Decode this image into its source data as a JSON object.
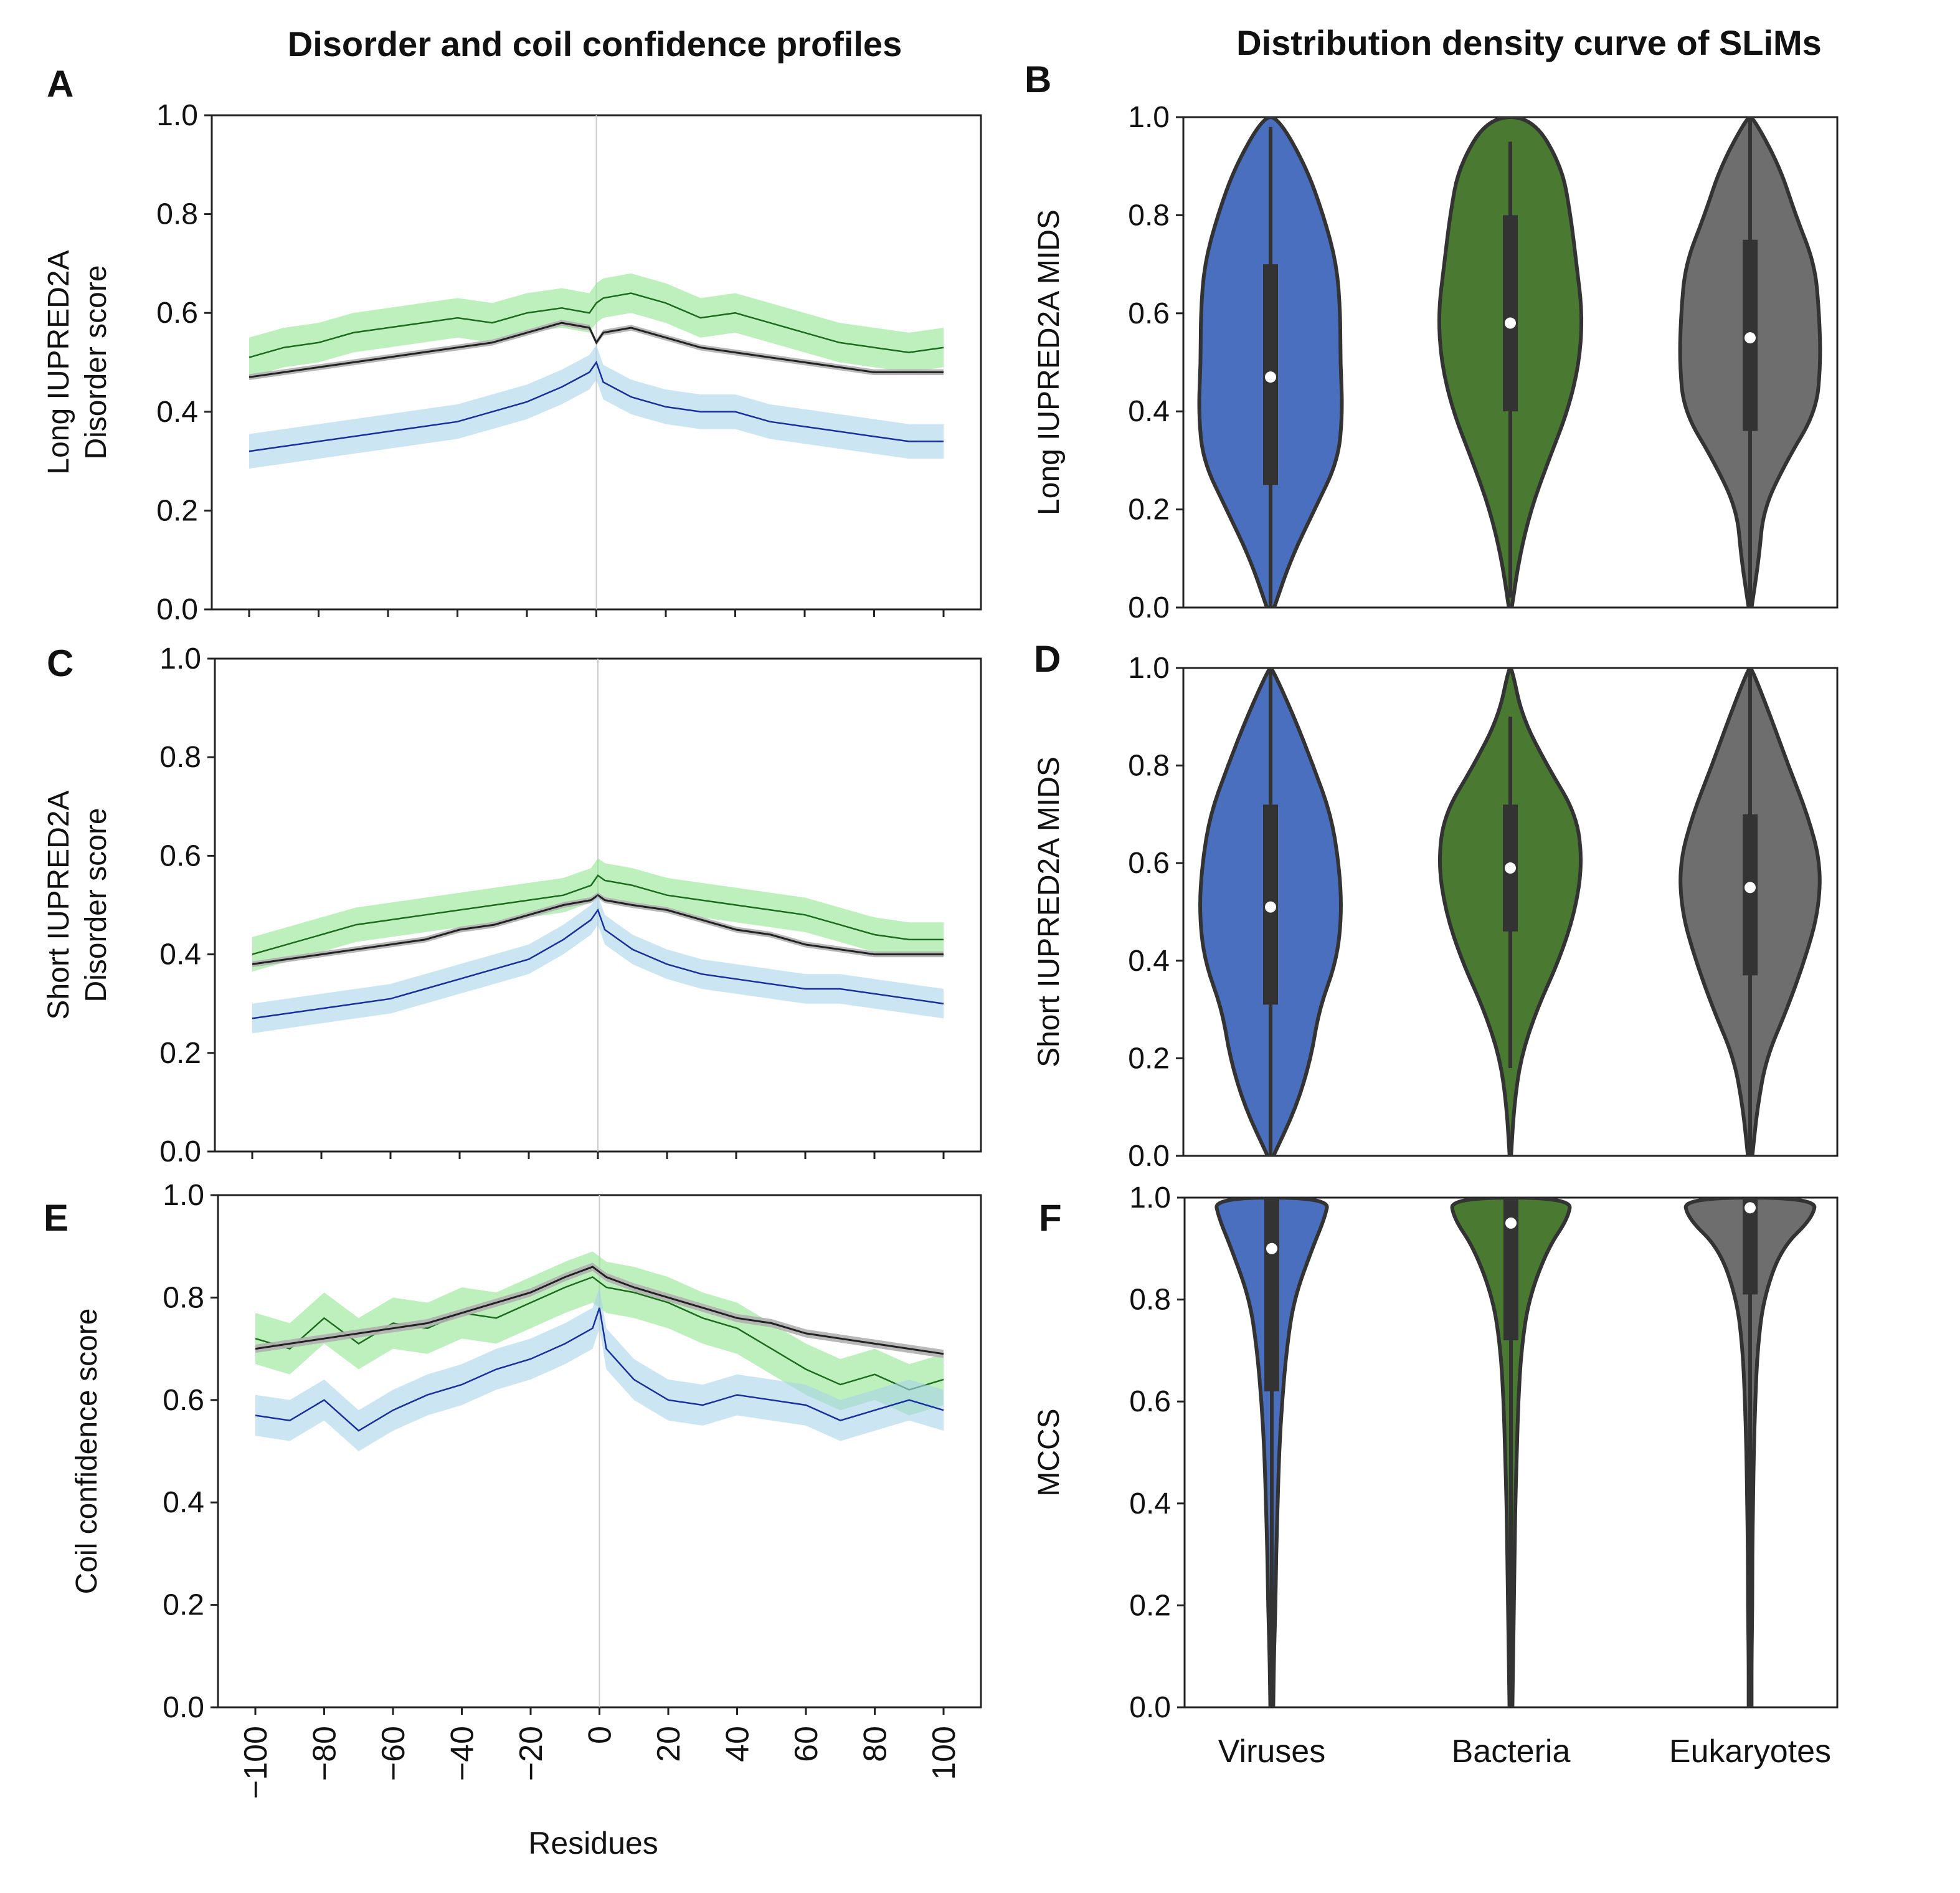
{
  "titles": {
    "left": "Disorder and coil confidence profiles",
    "right": "Distribution density curve of SLiMs"
  },
  "letters": [
    "A",
    "B",
    "C",
    "D",
    "E",
    "F"
  ],
  "colors": {
    "viruses": "#4a6fbf",
    "bacteria": "#4a7a32",
    "eukaryotes": "#6e6e6e",
    "blue_line": "#1a2f9e",
    "blue_band": "#a8d4ea",
    "green_line": "#1d6b1d",
    "green_band": "#93e693",
    "black_line": "#222222",
    "gray_band": "#b0b0b0"
  },
  "chart_data": [
    {
      "id": "A",
      "type": "line",
      "title": "Disorder and coil confidence profiles",
      "xlabel": "",
      "ylabel": [
        "Long IUPRED2A",
        "Disorder score"
      ],
      "xlim": [
        -100,
        100
      ],
      "ylim": [
        0,
        1
      ],
      "yticks": [
        "0.0",
        "0.2",
        "0.4",
        "0.6",
        "0.8",
        "1.0"
      ],
      "x": [
        -100,
        -90,
        -80,
        -70,
        -60,
        -50,
        -40,
        -30,
        -20,
        -10,
        -2,
        0,
        2,
        10,
        20,
        30,
        40,
        50,
        60,
        70,
        80,
        90,
        100
      ],
      "series": [
        {
          "name": "bacteria",
          "color": "green",
          "band": 0.04,
          "values": [
            0.51,
            0.53,
            0.54,
            0.56,
            0.57,
            0.58,
            0.59,
            0.58,
            0.6,
            0.61,
            0.6,
            0.62,
            0.63,
            0.64,
            0.62,
            0.59,
            0.6,
            0.58,
            0.56,
            0.54,
            0.53,
            0.52,
            0.53
          ]
        },
        {
          "name": "all",
          "color": "black",
          "band": 0.006,
          "values": [
            0.47,
            0.48,
            0.49,
            0.5,
            0.51,
            0.52,
            0.53,
            0.54,
            0.56,
            0.58,
            0.57,
            0.54,
            0.56,
            0.57,
            0.55,
            0.53,
            0.52,
            0.51,
            0.5,
            0.49,
            0.48,
            0.48,
            0.48
          ]
        },
        {
          "name": "viruses",
          "color": "blue",
          "band": 0.035,
          "values": [
            0.32,
            0.33,
            0.34,
            0.35,
            0.36,
            0.37,
            0.38,
            0.4,
            0.42,
            0.45,
            0.48,
            0.5,
            0.46,
            0.43,
            0.41,
            0.4,
            0.4,
            0.38,
            0.37,
            0.36,
            0.35,
            0.34,
            0.34
          ]
        }
      ]
    },
    {
      "id": "C",
      "type": "line",
      "xlabel": "",
      "ylabel": [
        "Short IUPRED2A",
        "Disorder score"
      ],
      "xlim": [
        -100,
        100
      ],
      "ylim": [
        0,
        1
      ],
      "yticks": [
        "0.0",
        "0.2",
        "0.4",
        "0.6",
        "0.8",
        "1.0"
      ],
      "x": [
        -100,
        -90,
        -80,
        -70,
        -60,
        -50,
        -40,
        -30,
        -20,
        -10,
        -2,
        0,
        2,
        10,
        20,
        30,
        40,
        50,
        60,
        70,
        80,
        90,
        100
      ],
      "series": [
        {
          "name": "bacteria",
          "color": "green",
          "band": 0.035,
          "values": [
            0.4,
            0.42,
            0.44,
            0.46,
            0.47,
            0.48,
            0.49,
            0.5,
            0.51,
            0.52,
            0.54,
            0.56,
            0.55,
            0.54,
            0.52,
            0.51,
            0.5,
            0.49,
            0.48,
            0.46,
            0.44,
            0.43,
            0.43
          ]
        },
        {
          "name": "all",
          "color": "black",
          "band": 0.006,
          "values": [
            0.38,
            0.39,
            0.4,
            0.41,
            0.42,
            0.43,
            0.45,
            0.46,
            0.48,
            0.5,
            0.51,
            0.52,
            0.51,
            0.5,
            0.49,
            0.47,
            0.45,
            0.44,
            0.42,
            0.41,
            0.4,
            0.4,
            0.4
          ]
        },
        {
          "name": "viruses",
          "color": "blue",
          "band": 0.03,
          "values": [
            0.27,
            0.28,
            0.29,
            0.3,
            0.31,
            0.33,
            0.35,
            0.37,
            0.39,
            0.43,
            0.47,
            0.49,
            0.45,
            0.41,
            0.38,
            0.36,
            0.35,
            0.34,
            0.33,
            0.33,
            0.32,
            0.31,
            0.3
          ]
        }
      ]
    },
    {
      "id": "E",
      "type": "line",
      "xlabel": "Residues",
      "ylabel": [
        "Coil confidence score"
      ],
      "xlim": [
        -100,
        100
      ],
      "ylim": [
        0,
        1
      ],
      "yticks": [
        "0.0",
        "0.2",
        "0.4",
        "0.6",
        "0.8",
        "1.0"
      ],
      "xticks": [
        "−100",
        "−80",
        "−60",
        "−40",
        "−20",
        "0",
        "20",
        "40",
        "60",
        "80",
        "100"
      ],
      "x": [
        -100,
        -90,
        -80,
        -70,
        -60,
        -50,
        -40,
        -30,
        -20,
        -10,
        -2,
        0,
        2,
        10,
        20,
        30,
        40,
        50,
        60,
        70,
        80,
        90,
        100
      ],
      "series": [
        {
          "name": "bacteria",
          "color": "green",
          "band": 0.05,
          "values": [
            0.72,
            0.7,
            0.76,
            0.71,
            0.75,
            0.74,
            0.77,
            0.76,
            0.79,
            0.82,
            0.84,
            0.83,
            0.82,
            0.81,
            0.79,
            0.76,
            0.74,
            0.7,
            0.66,
            0.63,
            0.65,
            0.62,
            0.64
          ]
        },
        {
          "name": "all",
          "color": "black",
          "band": 0.008,
          "values": [
            0.7,
            0.71,
            0.72,
            0.73,
            0.74,
            0.75,
            0.77,
            0.79,
            0.81,
            0.84,
            0.86,
            0.85,
            0.84,
            0.82,
            0.8,
            0.78,
            0.76,
            0.75,
            0.73,
            0.72,
            0.71,
            0.7,
            0.69
          ]
        },
        {
          "name": "viruses",
          "color": "blue",
          "band": 0.04,
          "values": [
            0.57,
            0.56,
            0.6,
            0.54,
            0.58,
            0.61,
            0.63,
            0.66,
            0.68,
            0.71,
            0.74,
            0.78,
            0.7,
            0.64,
            0.6,
            0.59,
            0.61,
            0.6,
            0.59,
            0.56,
            0.58,
            0.6,
            0.58
          ]
        }
      ]
    },
    {
      "id": "B",
      "type": "violin",
      "ylabel": "Long IUPRED2A MIDS",
      "ylim": [
        0,
        1
      ],
      "yticks": [
        "0.0",
        "0.2",
        "0.4",
        "0.6",
        "0.8",
        "1.0"
      ],
      "categories": [
        "Viruses",
        "Bacteria",
        "Eukaryotes"
      ],
      "violins": [
        {
          "median": 0.47,
          "q1": 0.25,
          "q3": 0.7,
          "wlo": 0.0,
          "whi": 0.98,
          "profile": [
            [
              0,
              0.05
            ],
            [
              0.1,
              0.28
            ],
            [
              0.2,
              0.6
            ],
            [
              0.3,
              0.92
            ],
            [
              0.4,
              0.98
            ],
            [
              0.5,
              0.95
            ],
            [
              0.6,
              0.95
            ],
            [
              0.7,
              0.9
            ],
            [
              0.8,
              0.72
            ],
            [
              0.9,
              0.48
            ],
            [
              1.0,
              0.1
            ]
          ]
        },
        {
          "median": 0.58,
          "q1": 0.4,
          "q3": 0.8,
          "wlo": 0.02,
          "whi": 0.95,
          "profile": [
            [
              0,
              0.02
            ],
            [
              0.1,
              0.12
            ],
            [
              0.2,
              0.28
            ],
            [
              0.3,
              0.52
            ],
            [
              0.4,
              0.78
            ],
            [
              0.5,
              0.94
            ],
            [
              0.6,
              0.98
            ],
            [
              0.7,
              0.9
            ],
            [
              0.8,
              0.82
            ],
            [
              0.9,
              0.7
            ],
            [
              1.0,
              0.3
            ]
          ]
        },
        {
          "median": 0.55,
          "q1": 0.36,
          "q3": 0.75,
          "wlo": 0.0,
          "whi": 1.0,
          "profile": [
            [
              0,
              0.02
            ],
            [
              0.1,
              0.12
            ],
            [
              0.2,
              0.18
            ],
            [
              0.3,
              0.5
            ],
            [
              0.4,
              0.9
            ],
            [
              0.5,
              0.96
            ],
            [
              0.6,
              0.94
            ],
            [
              0.7,
              0.88
            ],
            [
              0.8,
              0.62
            ],
            [
              0.9,
              0.4
            ],
            [
              1.0,
              0.04
            ]
          ]
        }
      ]
    },
    {
      "id": "D",
      "type": "violin",
      "ylabel": "Short IUPRED2A MIDS",
      "ylim": [
        0,
        1
      ],
      "yticks": [
        "0.0",
        "0.2",
        "0.4",
        "0.6",
        "0.8",
        "1.0"
      ],
      "categories": [
        "Viruses",
        "Bacteria",
        "Eukaryotes"
      ],
      "violins": [
        {
          "median": 0.51,
          "q1": 0.31,
          "q3": 0.72,
          "wlo": 0.0,
          "whi": 1.0,
          "profile": [
            [
              0,
              0.04
            ],
            [
              0.1,
              0.35
            ],
            [
              0.2,
              0.55
            ],
            [
              0.3,
              0.66
            ],
            [
              0.4,
              0.9
            ],
            [
              0.5,
              0.97
            ],
            [
              0.6,
              0.93
            ],
            [
              0.7,
              0.82
            ],
            [
              0.8,
              0.58
            ],
            [
              0.9,
              0.32
            ],
            [
              1.0,
              0.02
            ]
          ]
        },
        {
          "median": 0.59,
          "q1": 0.46,
          "q3": 0.72,
          "wlo": 0.18,
          "whi": 0.9,
          "profile": [
            [
              0,
              0.01
            ],
            [
              0.1,
              0.05
            ],
            [
              0.2,
              0.14
            ],
            [
              0.3,
              0.36
            ],
            [
              0.4,
              0.66
            ],
            [
              0.5,
              0.88
            ],
            [
              0.6,
              0.98
            ],
            [
              0.7,
              0.9
            ],
            [
              0.8,
              0.5
            ],
            [
              0.9,
              0.16
            ],
            [
              1.0,
              0.02
            ]
          ]
        },
        {
          "median": 0.55,
          "q1": 0.37,
          "q3": 0.7,
          "wlo": 0.0,
          "whi": 1.0,
          "profile": [
            [
              0,
              0.03
            ],
            [
              0.1,
              0.1
            ],
            [
              0.2,
              0.22
            ],
            [
              0.3,
              0.5
            ],
            [
              0.4,
              0.74
            ],
            [
              0.5,
              0.93
            ],
            [
              0.6,
              0.96
            ],
            [
              0.7,
              0.78
            ],
            [
              0.8,
              0.52
            ],
            [
              0.9,
              0.28
            ],
            [
              1.0,
              0.02
            ]
          ]
        }
      ]
    },
    {
      "id": "F",
      "type": "violin",
      "ylabel": "MCCS",
      "ylim": [
        0,
        1
      ],
      "yticks": [
        "0.0",
        "0.2",
        "0.4",
        "0.6",
        "0.8",
        "1.0"
      ],
      "categories": [
        "Viruses",
        "Bacteria",
        "Eukaryotes"
      ],
      "violins": [
        {
          "median": 0.9,
          "q1": 0.62,
          "q3": 1.0,
          "wlo": 0.0,
          "whi": 1.0,
          "profile": [
            [
              0,
              0.02
            ],
            [
              0.1,
              0.03
            ],
            [
              0.2,
              0.05
            ],
            [
              0.3,
              0.06
            ],
            [
              0.4,
              0.08
            ],
            [
              0.5,
              0.1
            ],
            [
              0.6,
              0.14
            ],
            [
              0.7,
              0.2
            ],
            [
              0.8,
              0.3
            ],
            [
              0.9,
              0.55
            ],
            [
              0.96,
              0.72
            ],
            [
              1.0,
              0.78
            ]
          ]
        },
        {
          "median": 0.95,
          "q1": 0.72,
          "q3": 1.0,
          "wlo": 0.0,
          "whi": 1.0,
          "profile": [
            [
              0,
              0.02
            ],
            [
              0.1,
              0.03
            ],
            [
              0.2,
              0.04
            ],
            [
              0.3,
              0.05
            ],
            [
              0.4,
              0.06
            ],
            [
              0.5,
              0.08
            ],
            [
              0.6,
              0.1
            ],
            [
              0.7,
              0.14
            ],
            [
              0.8,
              0.24
            ],
            [
              0.9,
              0.5
            ],
            [
              0.96,
              0.78
            ],
            [
              1.0,
              0.82
            ]
          ]
        },
        {
          "median": 0.98,
          "q1": 0.81,
          "q3": 1.0,
          "wlo": 0.0,
          "whi": 1.0,
          "profile": [
            [
              0,
              0.02
            ],
            [
              0.1,
              0.02
            ],
            [
              0.2,
              0.03
            ],
            [
              0.3,
              0.03
            ],
            [
              0.4,
              0.04
            ],
            [
              0.5,
              0.05
            ],
            [
              0.6,
              0.07
            ],
            [
              0.7,
              0.1
            ],
            [
              0.8,
              0.18
            ],
            [
              0.9,
              0.42
            ],
            [
              0.96,
              0.85
            ],
            [
              1.0,
              0.9
            ]
          ]
        }
      ]
    }
  ]
}
